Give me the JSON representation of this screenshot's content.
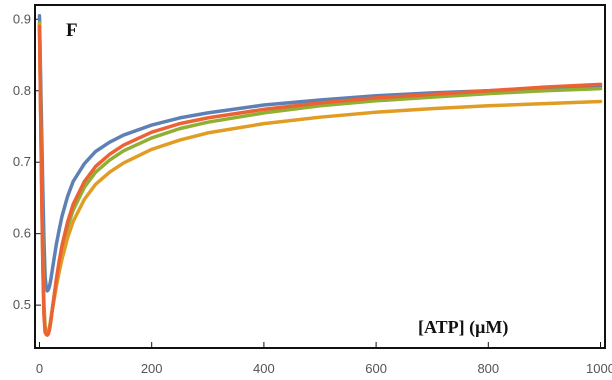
{
  "chart_data": {
    "type": "line",
    "panel_label": "F",
    "title": "",
    "xlabel": "[ATP] (μM)",
    "ylabel": "",
    "xlim": [
      -8,
      1008
    ],
    "ylim": [
      0.44,
      0.92
    ],
    "xticks": [
      0,
      200,
      400,
      600,
      800,
      1000
    ],
    "yticks": [
      0.5,
      0.6,
      0.7,
      0.8,
      0.9
    ],
    "grid": false,
    "x": [
      0,
      2,
      4,
      6,
      8,
      10,
      12,
      14,
      16,
      18,
      20,
      22,
      25,
      30,
      35,
      40,
      50,
      60,
      80,
      100,
      125,
      150,
      200,
      250,
      300,
      400,
      500,
      600,
      700,
      800,
      900,
      1000
    ],
    "series": [
      {
        "color": "#5e81b5",
        "values": [
          0.905,
          0.82,
          0.74,
          0.66,
          0.59,
          0.54,
          0.525,
          0.52,
          0.522,
          0.527,
          0.535,
          0.545,
          0.56,
          0.585,
          0.605,
          0.624,
          0.652,
          0.673,
          0.698,
          0.715,
          0.728,
          0.738,
          0.752,
          0.762,
          0.769,
          0.78,
          0.787,
          0.793,
          0.797,
          0.8,
          0.803,
          0.806
        ]
      },
      {
        "color": "#8fb032",
        "values": [
          0.895,
          0.78,
          0.67,
          0.57,
          0.5,
          0.47,
          0.462,
          0.46,
          0.462,
          0.468,
          0.478,
          0.49,
          0.507,
          0.534,
          0.557,
          0.577,
          0.609,
          0.633,
          0.665,
          0.686,
          0.703,
          0.716,
          0.734,
          0.747,
          0.756,
          0.769,
          0.779,
          0.786,
          0.791,
          0.796,
          0.8,
          0.803
        ]
      },
      {
        "color": "#e19c24",
        "values": [
          0.893,
          0.775,
          0.66,
          0.56,
          0.49,
          0.465,
          0.46,
          0.46,
          0.463,
          0.47,
          0.48,
          0.49,
          0.503,
          0.526,
          0.546,
          0.564,
          0.594,
          0.617,
          0.648,
          0.669,
          0.686,
          0.699,
          0.718,
          0.731,
          0.741,
          0.754,
          0.763,
          0.77,
          0.775,
          0.779,
          0.782,
          0.785
        ]
      },
      {
        "color": "#eb6235",
        "values": [
          0.89,
          0.77,
          0.65,
          0.55,
          0.485,
          0.462,
          0.459,
          0.458,
          0.46,
          0.466,
          0.476,
          0.488,
          0.506,
          0.536,
          0.561,
          0.583,
          0.616,
          0.641,
          0.673,
          0.694,
          0.711,
          0.724,
          0.742,
          0.754,
          0.762,
          0.774,
          0.783,
          0.79,
          0.795,
          0.8,
          0.805,
          0.809
        ]
      }
    ]
  }
}
